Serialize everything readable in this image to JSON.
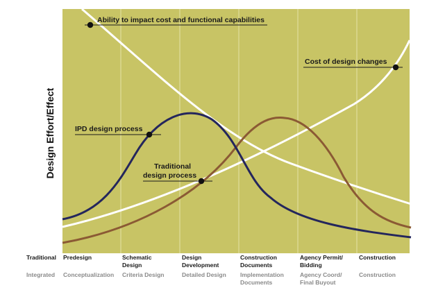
{
  "diagram": {
    "y_axis_label": "Design Effort/Effect",
    "colors": {
      "plot_background": "#c8c465",
      "ipd_curve": "#24265c",
      "traditional_curve": "#8b5a34",
      "white_curves": "#ffffff",
      "divider_lines": "#e4e2a8",
      "integrated_text": "#8a8a8a"
    },
    "curves": {
      "ability": "Ability to impact cost and functional capabilities",
      "cost": "Cost of design changes",
      "ipd": "IPD design process",
      "traditional_line1": "Traditional",
      "traditional_line2": "design process"
    },
    "rows": {
      "traditional": "Traditional",
      "integrated": "Integrated"
    },
    "traditional_phases": [
      [
        "Predesign"
      ],
      [
        "Schematic",
        "Design"
      ],
      [
        "Design",
        "Development"
      ],
      [
        "Construction",
        "Documents"
      ],
      [
        "Agency Permit/",
        "Bidding"
      ],
      [
        "Construction"
      ]
    ],
    "integrated_phases": [
      [
        "Conceptualization"
      ],
      [
        "Criteria Design"
      ],
      [
        "Detailed Design"
      ],
      [
        "Implementation",
        "Documents"
      ],
      [
        "Agency Coord/",
        "Final Buyout"
      ],
      [
        "Construction"
      ]
    ]
  }
}
